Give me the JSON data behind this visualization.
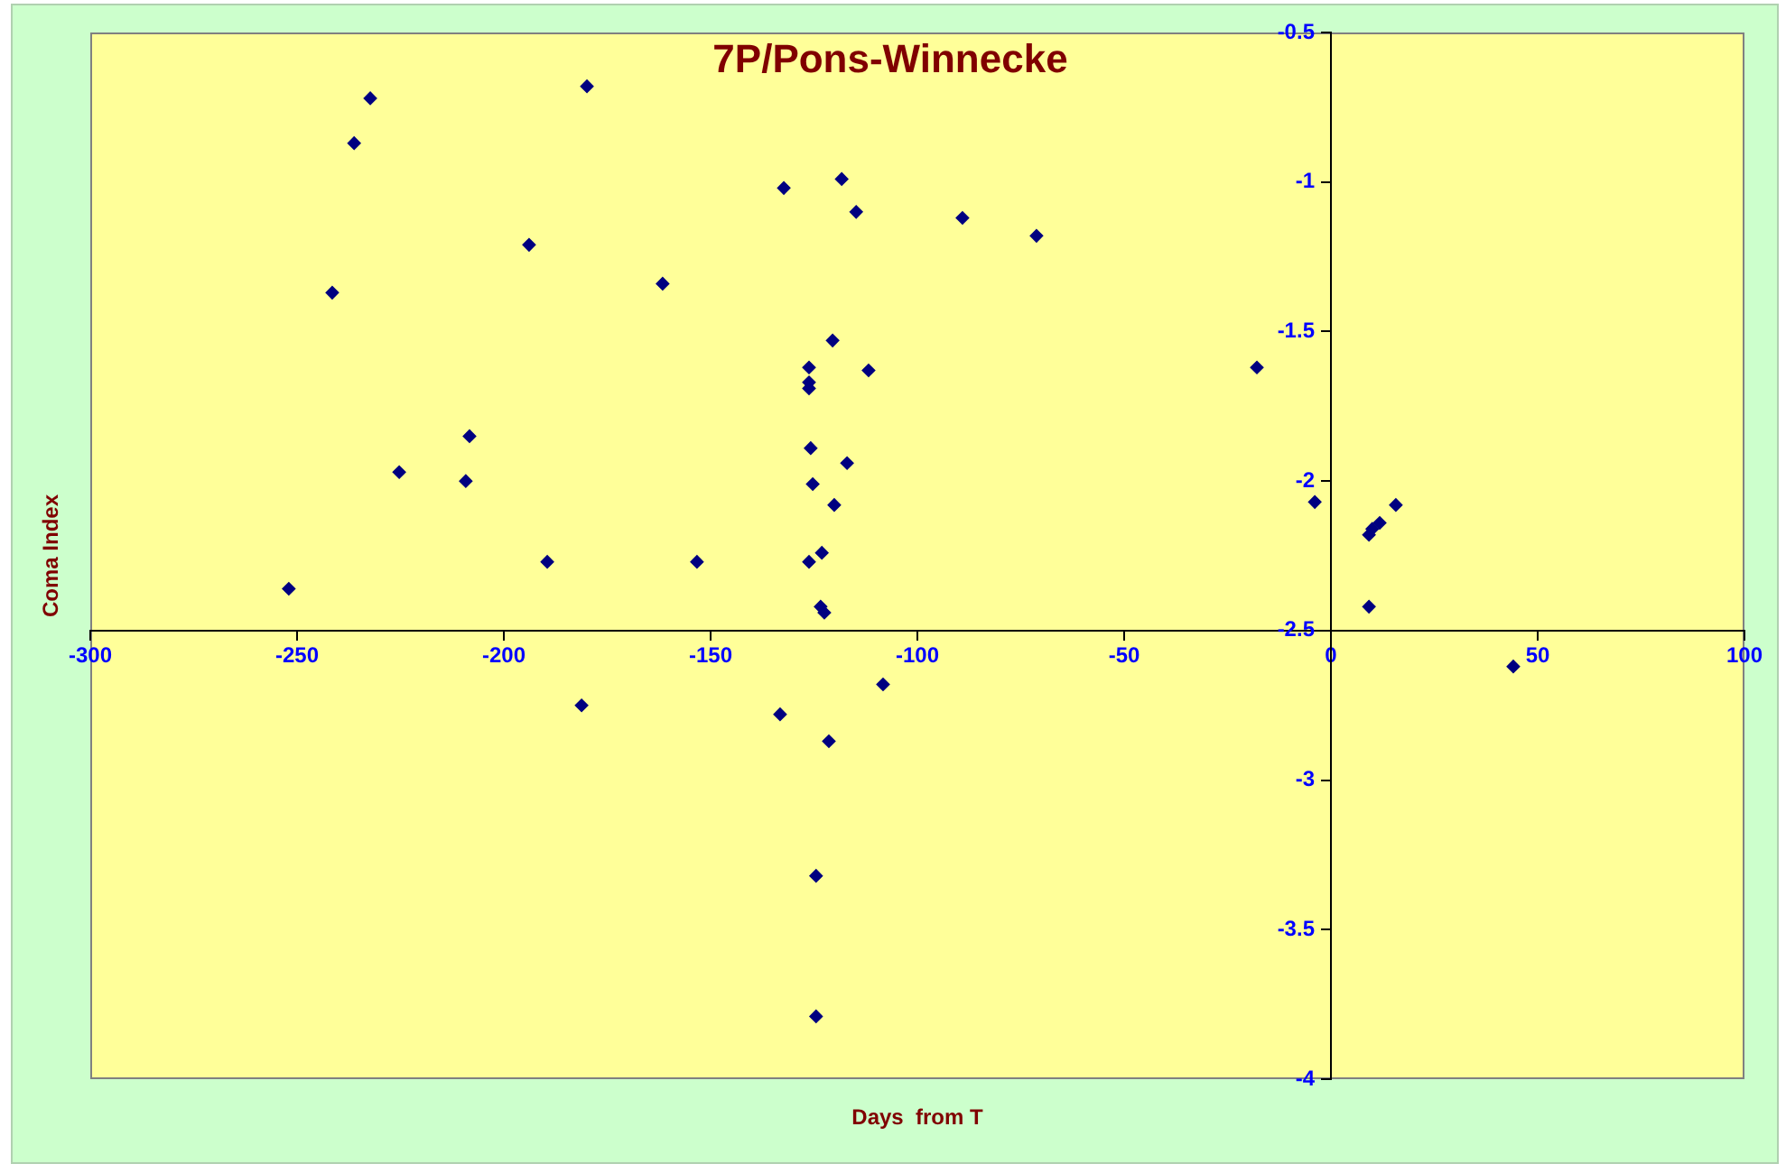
{
  "chart_data": {
    "type": "scatter",
    "title": "7P/Pons-Winnecke",
    "xlabel": "Days  from T",
    "ylabel": "Coma Index",
    "x": [
      -252,
      -241.5,
      -236.2,
      -232.3,
      -225.3,
      -209.2,
      -208.3,
      -193.9,
      -189.5,
      -181.2,
      -179.9,
      -161.6,
      -153.3,
      -133.2,
      -132.3,
      -126.2,
      -126.2,
      -126.2,
      -125.8,
      -125.3,
      -126.2,
      -123.1,
      -123.4,
      -122.5,
      -124.5,
      -124.5,
      -121.4,
      -120.5,
      -120.1,
      -118.3,
      -117,
      -114.8,
      -111.8,
      -108.3,
      -89.1,
      -71.2,
      -17.9,
      -3.9,
      9.2,
      9.2,
      10,
      11.8,
      15.7,
      44.1
    ],
    "series": [
      {
        "color": "#000080",
        "values": [
          -2.36,
          -1.37,
          -0.87,
          -0.72,
          -1.97,
          -2.0,
          -1.85,
          -1.21,
          -2.27,
          -2.75,
          -0.68,
          -1.34,
          -2.27,
          -2.78,
          -1.02,
          -1.62,
          -1.67,
          -1.69,
          -1.89,
          -2.01,
          -2.27,
          -2.24,
          -2.42,
          -2.44,
          -3.32,
          -3.79,
          -2.87,
          -1.53,
          -2.08,
          -0.99,
          -1.94,
          -1.1,
          -1.63,
          -2.68,
          -1.12,
          -1.18,
          -1.62,
          -2.07,
          -2.42,
          -2.18,
          -2.16,
          -2.14,
          -2.08,
          -2.62
        ]
      }
    ],
    "xlim": [
      -300,
      100
    ],
    "xticks": [
      -300,
      -250,
      -200,
      -150,
      -100,
      -50,
      0,
      50,
      100
    ],
    "ylim": [
      -4,
      -0.5
    ],
    "yticks": [
      -4,
      -3.5,
      -3,
      -2.5,
      -2,
      -1.5,
      -1,
      -0.5
    ],
    "grid": false,
    "legend": false,
    "marker": "diamond"
  }
}
